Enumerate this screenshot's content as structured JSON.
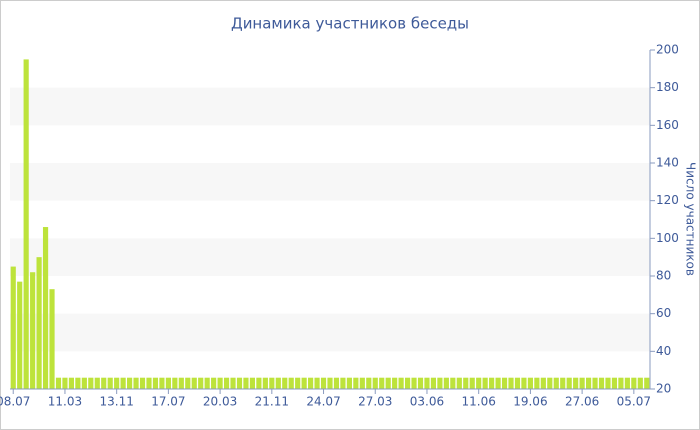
{
  "chart_data": {
    "type": "bar",
    "title": "Динамика участников беседы",
    "y_label": "Число участников",
    "categories": [
      "08.07",
      null,
      null,
      null,
      null,
      null,
      null,
      null,
      "11.03",
      null,
      null,
      null,
      null,
      null,
      null,
      null,
      "13.11",
      null,
      null,
      null,
      null,
      null,
      null,
      null,
      "17.07",
      null,
      null,
      null,
      null,
      null,
      null,
      null,
      "20.03",
      null,
      null,
      null,
      null,
      null,
      null,
      null,
      "21.11",
      null,
      null,
      null,
      null,
      null,
      null,
      null,
      "24.07",
      null,
      null,
      null,
      null,
      null,
      null,
      null,
      "27.03",
      null,
      null,
      null,
      null,
      null,
      null,
      null,
      "03.06",
      null,
      null,
      null,
      null,
      null,
      null,
      null,
      "11.06",
      null,
      null,
      null,
      null,
      null,
      null,
      null,
      "19.06",
      null,
      null,
      null,
      null,
      null,
      null,
      null,
      "27.06",
      null,
      null,
      null,
      null,
      null,
      null,
      null,
      "05.07",
      null,
      null
    ],
    "values": [
      85,
      77,
      195,
      82,
      90,
      106,
      73,
      26,
      26,
      26,
      26,
      26,
      26,
      26,
      26,
      26,
      26,
      26,
      26,
      26,
      26,
      26,
      26,
      26,
      26,
      26,
      26,
      26,
      26,
      26,
      26,
      26,
      26,
      26,
      26,
      26,
      26,
      26,
      26,
      26,
      26,
      26,
      26,
      26,
      26,
      26,
      26,
      26,
      26,
      26,
      26,
      26,
      26,
      26,
      26,
      26,
      26,
      26,
      26,
      26,
      26,
      26,
      26,
      26,
      26,
      26,
      26,
      26,
      26,
      26,
      26,
      26,
      26,
      26,
      26,
      26,
      26,
      26,
      26,
      26,
      26,
      26,
      26,
      26,
      26,
      26,
      26,
      26,
      26,
      26,
      26,
      26,
      26,
      26,
      26,
      26,
      26,
      26,
      26
    ],
    "color": "#bde33b",
    "ylim": [
      20,
      200
    ],
    "yticks": [
      20,
      40,
      60,
      80,
      100,
      120,
      140,
      160,
      180,
      200
    ],
    "grid": true,
    "y_axis_side": "right"
  }
}
